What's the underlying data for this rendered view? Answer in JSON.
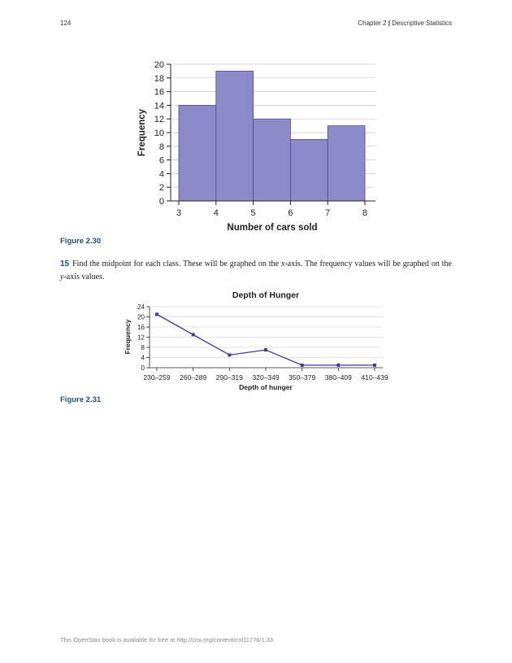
{
  "header": {
    "page_number": "124",
    "chapter": "Chapter 2",
    "separator": "|",
    "chapter_title": "Descriptive Statistics"
  },
  "figure_30": {
    "label": "Figure 2.30"
  },
  "figure_31": {
    "label": "Figure 2.31"
  },
  "exercise": {
    "number": "15",
    "text_before": "Find the midpoint for each class. These will be graphed on the ",
    "x_axis_term": "x",
    "text_middle": "-axis. The frequency values will be graphed on the ",
    "y_axis_term": "y",
    "text_after": "-axis values."
  },
  "footer": {
    "text": "This OpenStax book is available for free at http://cnx.org/content/col11776/1.33"
  },
  "colors": {
    "bar_fill": "#8b8bc9",
    "bar_stroke": "#4a4a99",
    "line": "#3d3d99",
    "grid": "#cccccc"
  },
  "chart_data": [
    {
      "type": "bar",
      "title": "",
      "xlabel": "Number of cars sold",
      "ylabel": "Frequency",
      "bin_edges": [
        3,
        4,
        5,
        6,
        7,
        8
      ],
      "values": [
        14,
        19,
        12,
        9,
        11
      ],
      "xticks": [
        "3",
        "4",
        "5",
        "6",
        "7",
        "8"
      ],
      "yticks": [
        "0",
        "2",
        "4",
        "6",
        "8",
        "10",
        "12",
        "14",
        "16",
        "18",
        "20"
      ],
      "ylim": [
        0,
        20
      ],
      "grid": true
    },
    {
      "type": "line",
      "title": "Depth of Hunger",
      "xlabel": "Depth of hunger",
      "ylabel": "Frequency",
      "categories": [
        "230–259",
        "260–289",
        "290–319",
        "320–349",
        "350–379",
        "380–409",
        "410–439"
      ],
      "values": [
        21,
        13,
        5,
        7,
        1,
        1,
        1
      ],
      "yticks": [
        "0",
        "4",
        "8",
        "12",
        "16",
        "20",
        "24"
      ],
      "ylim": [
        0,
        24
      ],
      "grid": true
    }
  ]
}
